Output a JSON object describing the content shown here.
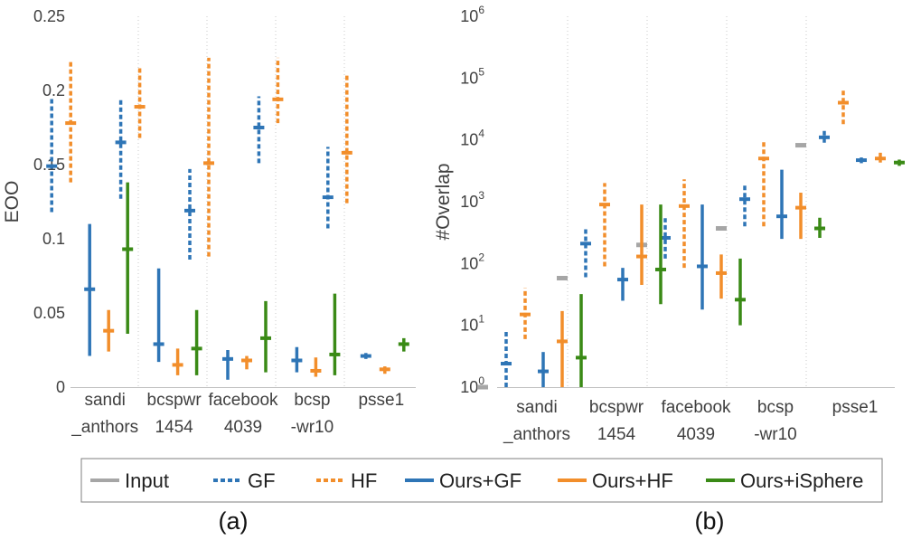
{
  "legend": [
    {
      "key": "input",
      "label": "Input",
      "color": "#a6a6a6",
      "dashed": false
    },
    {
      "key": "gf",
      "label": "GF",
      "color": "#2e75b6",
      "dashed": true
    },
    {
      "key": "hf",
      "label": "HF",
      "color": "#f28e2b",
      "dashed": true
    },
    {
      "key": "ours_gf",
      "label": "Ours+GF",
      "color": "#2e75b6",
      "dashed": false
    },
    {
      "key": "ours_hf",
      "label": "Ours+HF",
      "color": "#f28e2b",
      "dashed": false
    },
    {
      "key": "ours_isphere",
      "label": "Ours+iSphere",
      "color": "#3a8a16",
      "dashed": false
    }
  ],
  "chart_data": [
    {
      "type": "range",
      "panel_label": "(a)",
      "ylabel": "EOO",
      "ylim": [
        0,
        0.25
      ],
      "yticks": [
        0,
        0.05,
        0.1,
        0.15,
        0.2,
        0.25
      ],
      "ytick_labels": [
        "0",
        "0.05",
        "0.1",
        "0.15",
        "0.2",
        "0.25"
      ],
      "categories": [
        [
          "sandi",
          "_anthors"
        ],
        [
          "bcspwr",
          "1454"
        ],
        [
          "facebook",
          "4039"
        ],
        [
          "bcsp",
          "-wr10"
        ],
        [
          "psse1",
          ""
        ]
      ],
      "series": [
        {
          "key": "gf",
          "values": [
            {
              "low": 0.118,
              "mid": 0.149,
              "high": 0.196
            },
            {
              "low": 0.127,
              "mid": 0.165,
              "high": 0.194
            },
            {
              "low": 0.086,
              "mid": 0.119,
              "high": 0.147
            },
            {
              "low": 0.151,
              "mid": 0.175,
              "high": 0.196
            },
            {
              "low": 0.107,
              "mid": 0.128,
              "high": 0.162
            }
          ]
        },
        {
          "key": "hf",
          "values": [
            {
              "low": 0.138,
              "mid": 0.178,
              "high": 0.22
            },
            {
              "low": 0.168,
              "mid": 0.189,
              "high": 0.215
            },
            {
              "low": 0.088,
              "mid": 0.151,
              "high": 0.222
            },
            {
              "low": 0.178,
              "mid": 0.194,
              "high": 0.222
            },
            {
              "low": 0.124,
              "mid": 0.158,
              "high": 0.21
            }
          ]
        },
        {
          "key": "ours_gf",
          "values": [
            {
              "low": 0.021,
              "mid": 0.066,
              "high": 0.11
            },
            {
              "low": 0.017,
              "mid": 0.029,
              "high": 0.08
            },
            {
              "low": 0.005,
              "mid": 0.019,
              "high": 0.025
            },
            {
              "low": 0.01,
              "mid": 0.018,
              "high": 0.027
            },
            {
              "low": 0.019,
              "mid": 0.021,
              "high": 0.023
            }
          ]
        },
        {
          "key": "ours_hf",
          "values": [
            {
              "low": 0.024,
              "mid": 0.038,
              "high": 0.052
            },
            {
              "low": 0.008,
              "mid": 0.015,
              "high": 0.026
            },
            {
              "low": 0.012,
              "mid": 0.018,
              "high": 0.021
            },
            {
              "low": 0.007,
              "mid": 0.011,
              "high": 0.02
            },
            {
              "low": 0.009,
              "mid": 0.012,
              "high": 0.014
            }
          ]
        },
        {
          "key": "ours_isphere",
          "values": [
            {
              "low": 0.036,
              "mid": 0.093,
              "high": 0.138
            },
            {
              "low": 0.008,
              "mid": 0.026,
              "high": 0.052
            },
            {
              "low": 0.01,
              "mid": 0.033,
              "high": 0.058
            },
            {
              "low": 0.008,
              "mid": 0.022,
              "high": 0.063
            },
            {
              "low": 0.024,
              "mid": 0.029,
              "high": 0.033
            }
          ]
        }
      ]
    },
    {
      "type": "range",
      "panel_label": "(b)",
      "ylabel": "#Overlap",
      "yscale": "log",
      "ylim": [
        1,
        1000000
      ],
      "yticks": [
        1,
        10,
        100,
        1000,
        10000,
        100000,
        1000000
      ],
      "ytick_exponents": [
        "0",
        "1",
        "2",
        "3",
        "4",
        "5",
        "6"
      ],
      "ytick_base": "10",
      "categories": [
        [
          "sandi",
          "_anthors"
        ],
        [
          "bcspwr",
          "1454"
        ],
        [
          "facebook",
          "4039"
        ],
        [
          "bcsp",
          "-wr10"
        ],
        [
          "psse1",
          ""
        ]
      ],
      "series": [
        {
          "key": "input",
          "values": [
            {
              "low": 1,
              "mid": 1,
              "high": 1
            },
            {
              "low": 58,
              "mid": 58,
              "high": 58
            },
            {
              "low": 200,
              "mid": 200,
              "high": 200
            },
            {
              "low": 370,
              "mid": 370,
              "high": 370
            },
            {
              "low": 8200,
              "mid": 8200,
              "high": 8200
            }
          ]
        },
        {
          "key": "gf",
          "values": [
            {
              "low": 1,
              "mid": 2.4,
              "high": 8
            },
            {
              "low": 60,
              "mid": 210,
              "high": 380
            },
            {
              "low": 120,
              "mid": 260,
              "high": 540
            },
            {
              "low": 400,
              "mid": 1100,
              "high": 1900
            },
            {
              "low": 9000,
              "mid": 11000,
              "high": 14000
            }
          ]
        },
        {
          "key": "hf",
          "values": [
            {
              "low": 6,
              "mid": 15,
              "high": 40
            },
            {
              "low": 90,
              "mid": 900,
              "high": 2000
            },
            {
              "low": 85,
              "mid": 850,
              "high": 2300
            },
            {
              "low": 400,
              "mid": 5000,
              "high": 10000
            },
            {
              "low": 18000,
              "mid": 40000,
              "high": 65000
            }
          ]
        },
        {
          "key": "ours_gf",
          "values": [
            {
              "low": 1,
              "mid": 1.8,
              "high": 3.7
            },
            {
              "low": 25,
              "mid": 55,
              "high": 85
            },
            {
              "low": 18,
              "mid": 90,
              "high": 900
            },
            {
              "low": 250,
              "mid": 580,
              "high": 3300
            },
            {
              "low": 4200,
              "mid": 4700,
              "high": 5200
            }
          ]
        },
        {
          "key": "ours_hf",
          "values": [
            {
              "low": 1,
              "mid": 5.5,
              "high": 17
            },
            {
              "low": 45,
              "mid": 130,
              "high": 900
            },
            {
              "low": 27,
              "mid": 70,
              "high": 140
            },
            {
              "low": 250,
              "mid": 800,
              "high": 1400
            },
            {
              "low": 4300,
              "mid": 5000,
              "high": 6200
            }
          ]
        },
        {
          "key": "ours_isphere",
          "values": [
            {
              "low": 1,
              "mid": 3,
              "high": 32
            },
            {
              "low": 22,
              "mid": 80,
              "high": 900
            },
            {
              "low": 10,
              "mid": 26,
              "high": 120
            },
            {
              "low": 260,
              "mid": 370,
              "high": 550
            },
            {
              "low": 3800,
              "mid": 4300,
              "high": 4800
            }
          ]
        }
      ]
    }
  ]
}
